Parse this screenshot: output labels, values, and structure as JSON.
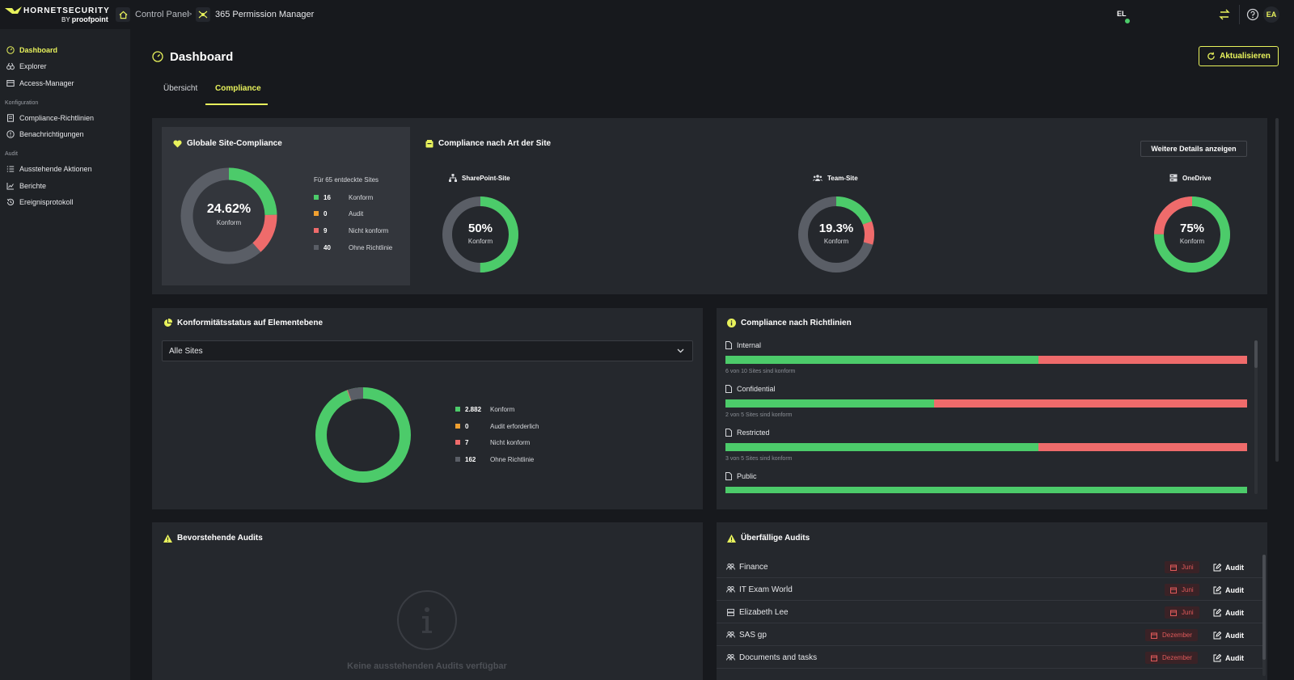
{
  "app": {
    "logo_brand": "HORNETSECURITY",
    "logo_by": "BY",
    "logo_partner": "proofpoint",
    "breadcrumb": [
      "Control Panel",
      ">",
      "365 Permission Manager"
    ],
    "user_initials_left": "EL",
    "user_initials_right": "EA",
    "accent_color": "#e8f25c"
  },
  "sidebar": {
    "items": [
      {
        "label": "Dashboard",
        "icon": "dashboard-icon",
        "active": true
      },
      {
        "label": "Explorer",
        "icon": "binoculars-icon"
      },
      {
        "label": "Access-Manager",
        "icon": "access-icon"
      }
    ],
    "sections": [
      {
        "title": "Konfiguration",
        "items": [
          {
            "label": "Compliance-Richtlinien",
            "icon": "policy-icon"
          },
          {
            "label": "Benachrichtigungen",
            "icon": "notification-icon"
          }
        ]
      },
      {
        "title": "Audit",
        "items": [
          {
            "label": "Ausstehende Aktionen",
            "icon": "list-icon"
          },
          {
            "label": "Berichte",
            "icon": "chart-icon"
          },
          {
            "label": "Ereignisprotokoll",
            "icon": "history-icon"
          }
        ]
      }
    ]
  },
  "header": {
    "title": "Dashboard",
    "refresh_label": "Aktualisieren",
    "tabs": [
      {
        "label": "Übersicht",
        "active": false
      },
      {
        "label": "Compliance",
        "active": true
      }
    ]
  },
  "colors": {
    "conform": "#4ccb6a",
    "audit": "#f0a030",
    "nonconform": "#ef6b6b",
    "nopolicy": "#5a5e66"
  },
  "global_compliance": {
    "title": "Globale Site-Compliance",
    "percent": "24.62%",
    "sub": "Konform",
    "legend_head": "Für 65 entdeckte Sites",
    "legend": [
      {
        "value": "16",
        "label": "Konform"
      },
      {
        "value": "0",
        "label": "Audit"
      },
      {
        "value": "9",
        "label": "Nicht konform"
      },
      {
        "value": "40",
        "label": "Ohne Richtlinie"
      }
    ]
  },
  "site_types": {
    "title": "Compliance nach Art der Site",
    "details_button": "Weitere Details anzeigen",
    "sites": [
      {
        "name": "SharePoint-Site",
        "percent": "50%",
        "sub": "Konform",
        "conform_fraction": 0.5,
        "nonconform_fraction": 0.0
      },
      {
        "name": "Team-Site",
        "percent": "19.3%",
        "sub": "Konform",
        "conform_fraction": 0.193,
        "nonconform_fraction": 0.1
      },
      {
        "name": "OneDrive",
        "percent": "75%",
        "sub": "Konform",
        "conform_fraction": 0.75,
        "nonconform_fraction": 0.25
      }
    ]
  },
  "element_status": {
    "title": "Konformitätsstatus auf Elementebene",
    "select_value": "Alle Sites",
    "legend": [
      {
        "value": "2.882",
        "label": "Konform"
      },
      {
        "value": "0",
        "label": "Audit erforderlich"
      },
      {
        "value": "7",
        "label": "Nicht konform"
      },
      {
        "value": "162",
        "label": "Ohne Richtlinie"
      }
    ]
  },
  "policies": {
    "title": "Compliance nach Richtlinien",
    "items": [
      {
        "name": "Internal",
        "conform_fraction": 0.6,
        "note": "6 von 10 Sites sind konform"
      },
      {
        "name": "Confidential",
        "conform_fraction": 0.4,
        "note": "2 von 5 Sites sind konform"
      },
      {
        "name": "Restricted",
        "conform_fraction": 0.6,
        "note": "3 von 5 Sites sind konform"
      },
      {
        "name": "Public",
        "conform_fraction": 1.0,
        "note": ""
      }
    ]
  },
  "upcoming_audits": {
    "title": "Bevorstehende Audits",
    "empty_text": "Keine ausstehenden Audits verfügbar"
  },
  "overdue_audits": {
    "title": "Überfällige Audits",
    "rows": [
      {
        "name": "Finance",
        "icon": "group-icon",
        "month": "Juni",
        "action": "Audit"
      },
      {
        "name": "IT Exam World",
        "icon": "group-icon",
        "month": "Juni",
        "action": "Audit"
      },
      {
        "name": "Elizabeth Lee",
        "icon": "onedrive-icon",
        "month": "Juni",
        "action": "Audit"
      },
      {
        "name": "SAS gp",
        "icon": "group-icon",
        "month": "Dezember",
        "action": "Audit"
      },
      {
        "name": "Documents and tasks",
        "icon": "group-icon",
        "month": "Dezember",
        "action": "Audit"
      }
    ]
  }
}
